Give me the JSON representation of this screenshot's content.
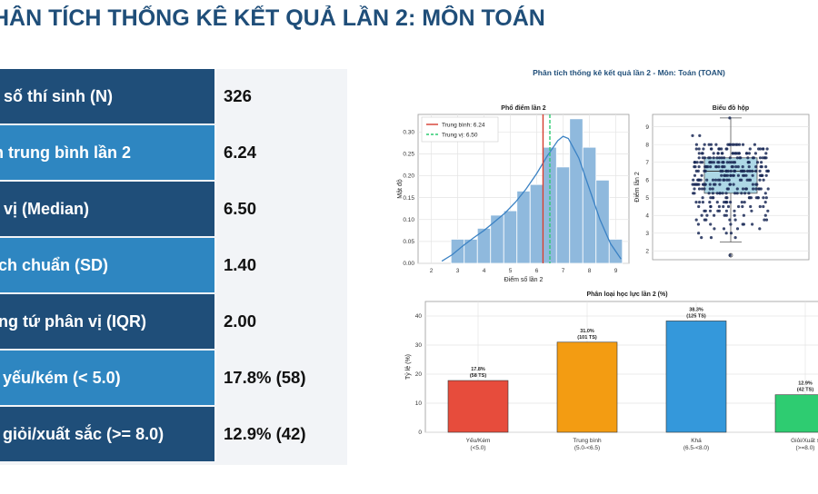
{
  "title": "HÂN TÍCH THỐNG KÊ KẾT QUẢ LẦN 2: MÔN TOÁN",
  "colors": {
    "title": "#1f4e79",
    "row_dark": "#1f4e79",
    "row_light": "#2e86c1",
    "panel_bg": "#f2f4f7"
  },
  "stats": [
    {
      "label": "g số thí sinh (N)",
      "value": "326"
    },
    {
      "label": "m trung bình lần 2",
      "value": "6.24"
    },
    {
      "label": "g vị (Median)",
      "value": "6.50"
    },
    {
      "label": "ệch chuẩn (SD)",
      "value": "1.40"
    },
    {
      "label": "ảng tứ phân vị (IQR)",
      "value": "2.00"
    },
    {
      "label": "ệ yếu/kém (< 5.0)",
      "value": "17.8% (58)"
    },
    {
      "label": "ệ giỏi/xuất sắc (>= 8.0)",
      "value": "12.9% (42)"
    }
  ],
  "figure": {
    "suptitle": "Phân tích thống kê kết quả lần 2 - Môn: Toán (TOAN)"
  },
  "chart_data": [
    {
      "type": "bar",
      "subtype": "histogram",
      "title": "Phổ điểm lần 2",
      "xlabel": "Điểm số lần 2",
      "ylabel": "Mật độ",
      "xlim": [
        1.5,
        9.5
      ],
      "ylim": [
        0,
        0.34
      ],
      "xticks": [
        "2",
        "3",
        "4",
        "5",
        "6",
        "7",
        "8",
        "9"
      ],
      "yticks": [
        "0.00",
        "0.05",
        "0.10",
        "0.15",
        "0.20",
        "0.25",
        "0.30"
      ],
      "bin_edges": [
        2.75,
        3.25,
        3.75,
        4.25,
        4.75,
        5.25,
        5.75,
        6.25,
        6.75,
        7.25,
        7.75,
        8.25,
        8.75,
        9.25
      ],
      "values": [
        0.055,
        0.055,
        0.08,
        0.11,
        0.12,
        0.165,
        0.18,
        0.265,
        0.22,
        0.33,
        0.265,
        0.19,
        0.055
      ],
      "kde_x": [
        2.4,
        2.8,
        3.2,
        3.6,
        4.0,
        4.4,
        4.8,
        5.2,
        5.6,
        6.0,
        6.4,
        6.8,
        7.0,
        7.2,
        7.6,
        8.0,
        8.4,
        8.8,
        9.2
      ],
      "kde_y": [
        0.005,
        0.02,
        0.04,
        0.058,
        0.075,
        0.095,
        0.115,
        0.14,
        0.17,
        0.205,
        0.245,
        0.28,
        0.29,
        0.285,
        0.24,
        0.17,
        0.1,
        0.045,
        0.01
      ],
      "mean": 6.24,
      "median": 6.5,
      "legend": [
        "Trung bình: 6.24",
        "Trung vị: 6.50"
      ],
      "legend_position": "top-left",
      "grid": true,
      "colors": {
        "bars": "#8fb9dd",
        "kde": "#3b82c4",
        "mean": "#d63c2f",
        "median": "#2ecc71"
      }
    },
    {
      "type": "scatter",
      "subtype": "boxplot",
      "title": "Biểu đồ hộp",
      "ylabel": "Điểm lần 2",
      "ylim": [
        1.5,
        9.7
      ],
      "yticks": [
        "2",
        "3",
        "4",
        "5",
        "6",
        "7",
        "8",
        "9"
      ],
      "q1": 5.25,
      "median": 6.5,
      "q3": 7.25,
      "whisker_low": 2.5,
      "whisker_high": 9.5,
      "outliers": [
        1.75
      ],
      "n_points": 326,
      "grid": true,
      "colors": {
        "box": "#add8e6",
        "points": "#1b2a57"
      }
    },
    {
      "type": "bar",
      "title": "Phân loại học lực lần 2 (%)",
      "ylabel": "Tỷ lệ (%)",
      "ylim": [
        0,
        45
      ],
      "yticks": [
        "0",
        "10",
        "20",
        "30",
        "40"
      ],
      "categories": [
        "Yếu/Kém",
        "Trung bình",
        "Khá",
        "Giỏi/Xuất s"
      ],
      "category_ranges": [
        "(<5.0)",
        "(5.0-<6.5)",
        "(6.5-<8.0)",
        "(>=8.0)"
      ],
      "values": [
        17.8,
        31.0,
        38.3,
        12.9
      ],
      "value_labels": [
        "17.8%",
        "31.0%",
        "38.3%",
        "12.9%"
      ],
      "count_labels": [
        "(58 TS)",
        "(101 TS)",
        "(125 TS)",
        "(42 TS)"
      ],
      "grid": true,
      "colors": [
        "#e74c3c",
        "#f39c12",
        "#3498db",
        "#2ecc71"
      ]
    }
  ]
}
